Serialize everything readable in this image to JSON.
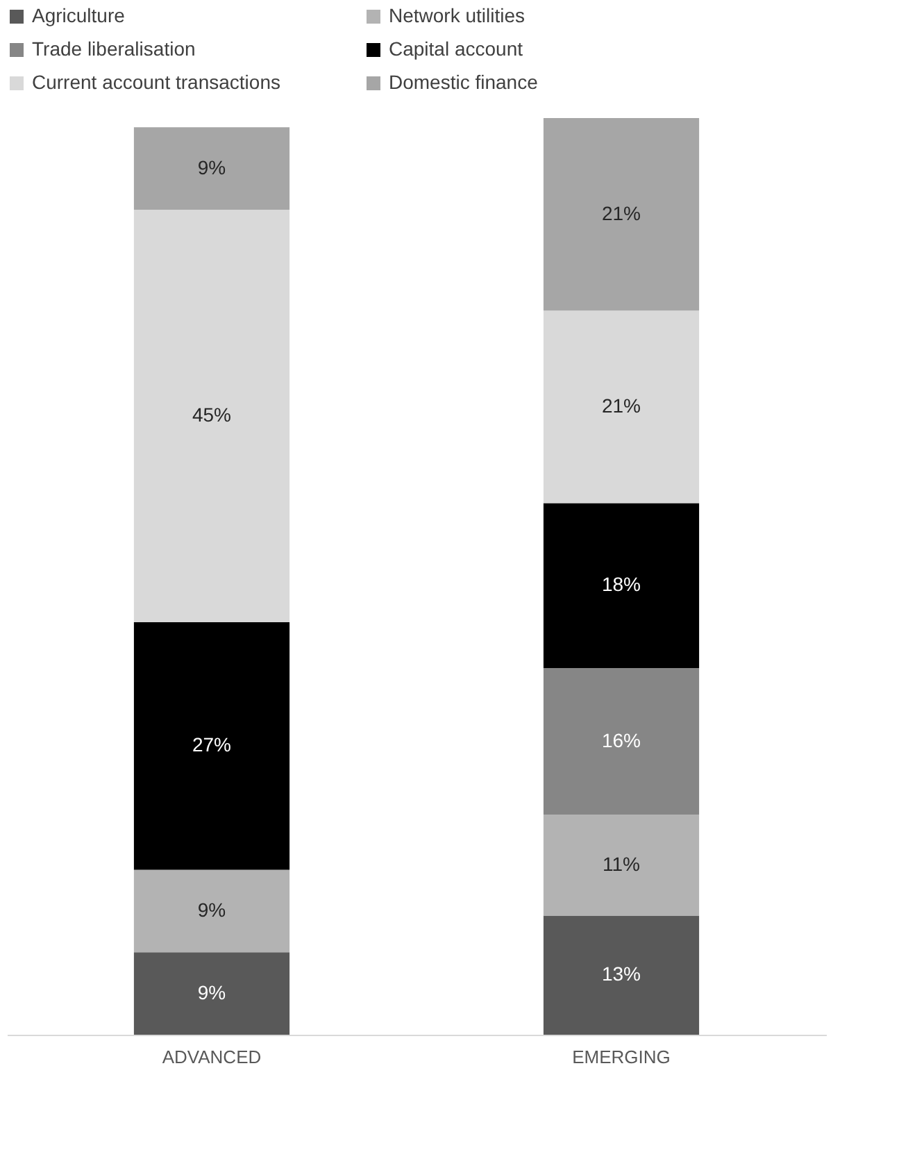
{
  "chart_data": {
    "type": "bar",
    "stacked": true,
    "legend": "top",
    "categories": [
      "ADVANCED",
      "EMERGING"
    ],
    "series": [
      {
        "name": "Agriculture",
        "color": "#595959",
        "values": [
          9,
          13
        ],
        "value_labels": [
          "9%",
          "13%"
        ]
      },
      {
        "name": "Network utilities",
        "color": "#b3b3b3",
        "values": [
          9,
          11
        ],
        "value_labels": [
          "9%",
          "11%"
        ]
      },
      {
        "name": "Trade liberalisation",
        "color": "#868686",
        "values": [
          null,
          16
        ],
        "value_labels": [
          null,
          "16%"
        ]
      },
      {
        "name": "Capital account",
        "color": "#000000",
        "values": [
          27,
          18
        ],
        "value_labels": [
          "27%",
          "18%"
        ]
      },
      {
        "name": "Current account transactions",
        "color": "#d9d9d9",
        "values": [
          45,
          21
        ],
        "value_labels": [
          "45%",
          "21%"
        ]
      },
      {
        "name": "Domestic finance",
        "color": "#a6a6a6",
        "values": [
          9,
          21
        ],
        "value_labels": [
          "9%",
          "21%"
        ]
      }
    ]
  }
}
